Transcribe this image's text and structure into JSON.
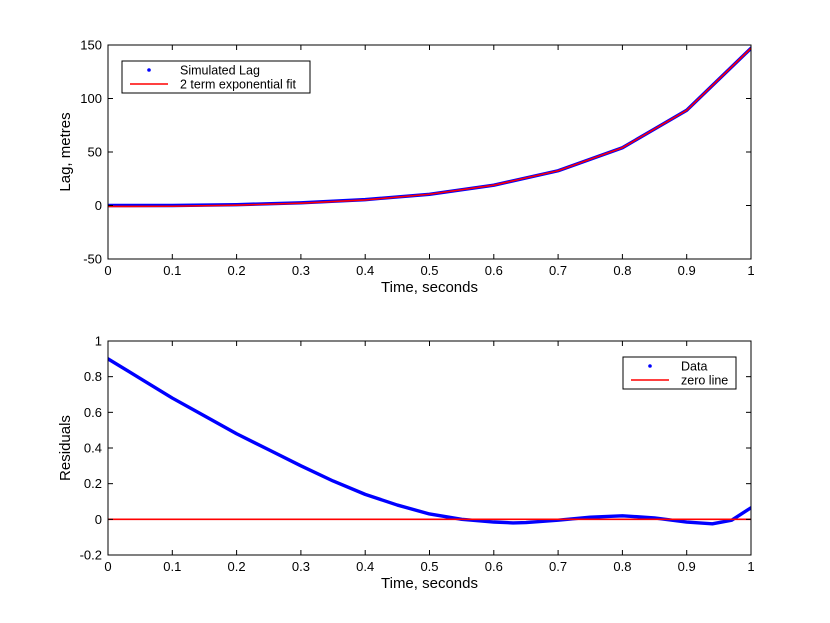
{
  "chart_data": [
    {
      "type": "line",
      "title": "",
      "xlabel": "Time, seconds",
      "ylabel": "Lag, metres",
      "xlim": [
        0,
        1
      ],
      "ylim": [
        -50,
        150
      ],
      "xticks": [
        0,
        0.1,
        0.2,
        0.3,
        0.4,
        0.5,
        0.6,
        0.7,
        0.8,
        0.9,
        1
      ],
      "xtick_labels": [
        "0",
        "0.1",
        "0.2",
        "0.3",
        "0.4",
        "0.5",
        "0.6",
        "0.7",
        "0.8",
        "0.9",
        "1"
      ],
      "yticks": [
        -50,
        0,
        50,
        100,
        150
      ],
      "ytick_labels": [
        "-50",
        "0",
        "50",
        "100",
        "150"
      ],
      "legend_position": "top-left",
      "series": [
        {
          "name": "Simulated Lag",
          "style": "dots",
          "color": "#0000ff",
          "x": [
            0,
            0.1,
            0.2,
            0.3,
            0.4,
            0.5,
            0.6,
            0.7,
            0.8,
            0.9,
            1.0
          ],
          "y": [
            0.0,
            0.0,
            0.8,
            2.5,
            5.5,
            10.5,
            19.0,
            32.5,
            54.0,
            89.0,
            147.0
          ]
        },
        {
          "name": "2 term exponential fit",
          "style": "line",
          "color": "#ff0000",
          "x": [
            0,
            0.1,
            0.2,
            0.3,
            0.4,
            0.5,
            0.6,
            0.7,
            0.8,
            0.9,
            1.0
          ],
          "y": [
            -0.9,
            -0.7,
            0.3,
            2.2,
            5.2,
            10.5,
            19.0,
            32.5,
            54.0,
            89.0,
            147.0
          ]
        }
      ]
    },
    {
      "type": "line",
      "title": "",
      "xlabel": "Time, seconds",
      "ylabel": "Residuals",
      "xlim": [
        0,
        1
      ],
      "ylim": [
        -0.2,
        1
      ],
      "xticks": [
        0,
        0.1,
        0.2,
        0.3,
        0.4,
        0.5,
        0.6,
        0.7,
        0.8,
        0.9,
        1
      ],
      "xtick_labels": [
        "0",
        "0.1",
        "0.2",
        "0.3",
        "0.4",
        "0.5",
        "0.6",
        "0.7",
        "0.8",
        "0.9",
        "1"
      ],
      "yticks": [
        -0.2,
        0,
        0.2,
        0.4,
        0.6,
        0.8,
        1
      ],
      "ytick_labels": [
        "-0.2",
        "0",
        "0.2",
        "0.4",
        "0.6",
        "0.8",
        "1"
      ],
      "legend_position": "top-right",
      "series": [
        {
          "name": "Data",
          "style": "dots",
          "color": "#0000ff",
          "x": [
            0,
            0.05,
            0.1,
            0.15,
            0.2,
            0.25,
            0.3,
            0.35,
            0.4,
            0.45,
            0.5,
            0.55,
            0.6,
            0.63,
            0.65,
            0.7,
            0.75,
            0.8,
            0.85,
            0.9,
            0.94,
            0.97,
            1.0
          ],
          "y": [
            0.9,
            0.79,
            0.68,
            0.58,
            0.48,
            0.39,
            0.3,
            0.215,
            0.14,
            0.08,
            0.03,
            0.0,
            -0.015,
            -0.02,
            -0.018,
            -0.005,
            0.012,
            0.02,
            0.008,
            -0.015,
            -0.025,
            -0.005,
            0.065
          ]
        },
        {
          "name": "zero line",
          "style": "line",
          "color": "#ff0000",
          "x": [
            0,
            1
          ],
          "y": [
            0,
            0
          ]
        }
      ]
    }
  ]
}
